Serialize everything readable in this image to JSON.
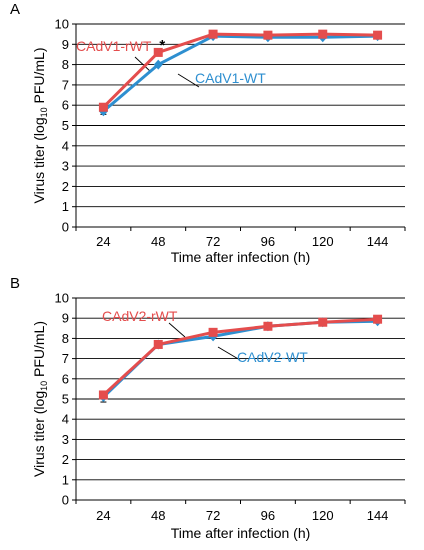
{
  "figure": {
    "ylabel_prefix": "Virus titer (log",
    "ylabel_sub": "10",
    "ylabel_suffix": " PFU/mL)",
    "xlabel": "Time after infection (h)"
  },
  "colors": {
    "wt": "#2e8fd0",
    "rwt": "#e44d4d",
    "axis": "#000000",
    "grid": "#000000"
  },
  "chart_data": [
    {
      "type": "line",
      "panel_label": "A",
      "title": "",
      "xlabel": "Time after infection (h)",
      "ylabel": "Virus titer (log10 PFU/mL)",
      "categories": [
        "24",
        "48",
        "72",
        "96",
        "120",
        "144"
      ],
      "ylim": [
        0,
        10
      ],
      "yticks": [
        0,
        1,
        2,
        3,
        4,
        5,
        6,
        7,
        8,
        9,
        10
      ],
      "grid": true,
      "series": [
        {
          "name": "CAdV1-WT",
          "color": "#2e8fd0",
          "marker": "diamond",
          "values": [
            5.7,
            8.0,
            9.4,
            9.35,
            9.35,
            9.4
          ],
          "errors": [
            0.15,
            0.05,
            0.05,
            0.05,
            0.05,
            0.05
          ]
        },
        {
          "name": "CAdV1-rWT",
          "color": "#e44d4d",
          "marker": "square",
          "values": [
            5.9,
            8.6,
            9.5,
            9.45,
            9.5,
            9.45
          ],
          "errors": [
            0.05,
            0.05,
            0.05,
            0.05,
            0.05,
            0.05
          ]
        }
      ],
      "annotations": [
        {
          "text": "*",
          "category": "48",
          "y": 9.2
        }
      ]
    },
    {
      "type": "line",
      "panel_label": "B",
      "title": "",
      "xlabel": "Time after infection (h)",
      "ylabel": "Virus titer (log10 PFU/mL)",
      "categories": [
        "24",
        "48",
        "72",
        "96",
        "120",
        "144"
      ],
      "ylim": [
        0,
        10
      ],
      "yticks": [
        0,
        1,
        2,
        3,
        4,
        5,
        6,
        7,
        8,
        9,
        10
      ],
      "grid": true,
      "series": [
        {
          "name": "CAdV2-WT",
          "color": "#2e8fd0",
          "marker": "diamond",
          "values": [
            5.1,
            7.7,
            8.1,
            8.6,
            8.8,
            8.85
          ],
          "errors": [
            0.25,
            0.05,
            0.05,
            0.05,
            0.05,
            0.05
          ]
        },
        {
          "name": "CAdV2-rWT",
          "color": "#e44d4d",
          "marker": "square",
          "values": [
            5.2,
            7.7,
            8.3,
            8.6,
            8.8,
            8.95
          ],
          "errors": [
            0.05,
            0.05,
            0.05,
            0.05,
            0.05,
            0.05
          ]
        }
      ],
      "annotations": []
    }
  ]
}
